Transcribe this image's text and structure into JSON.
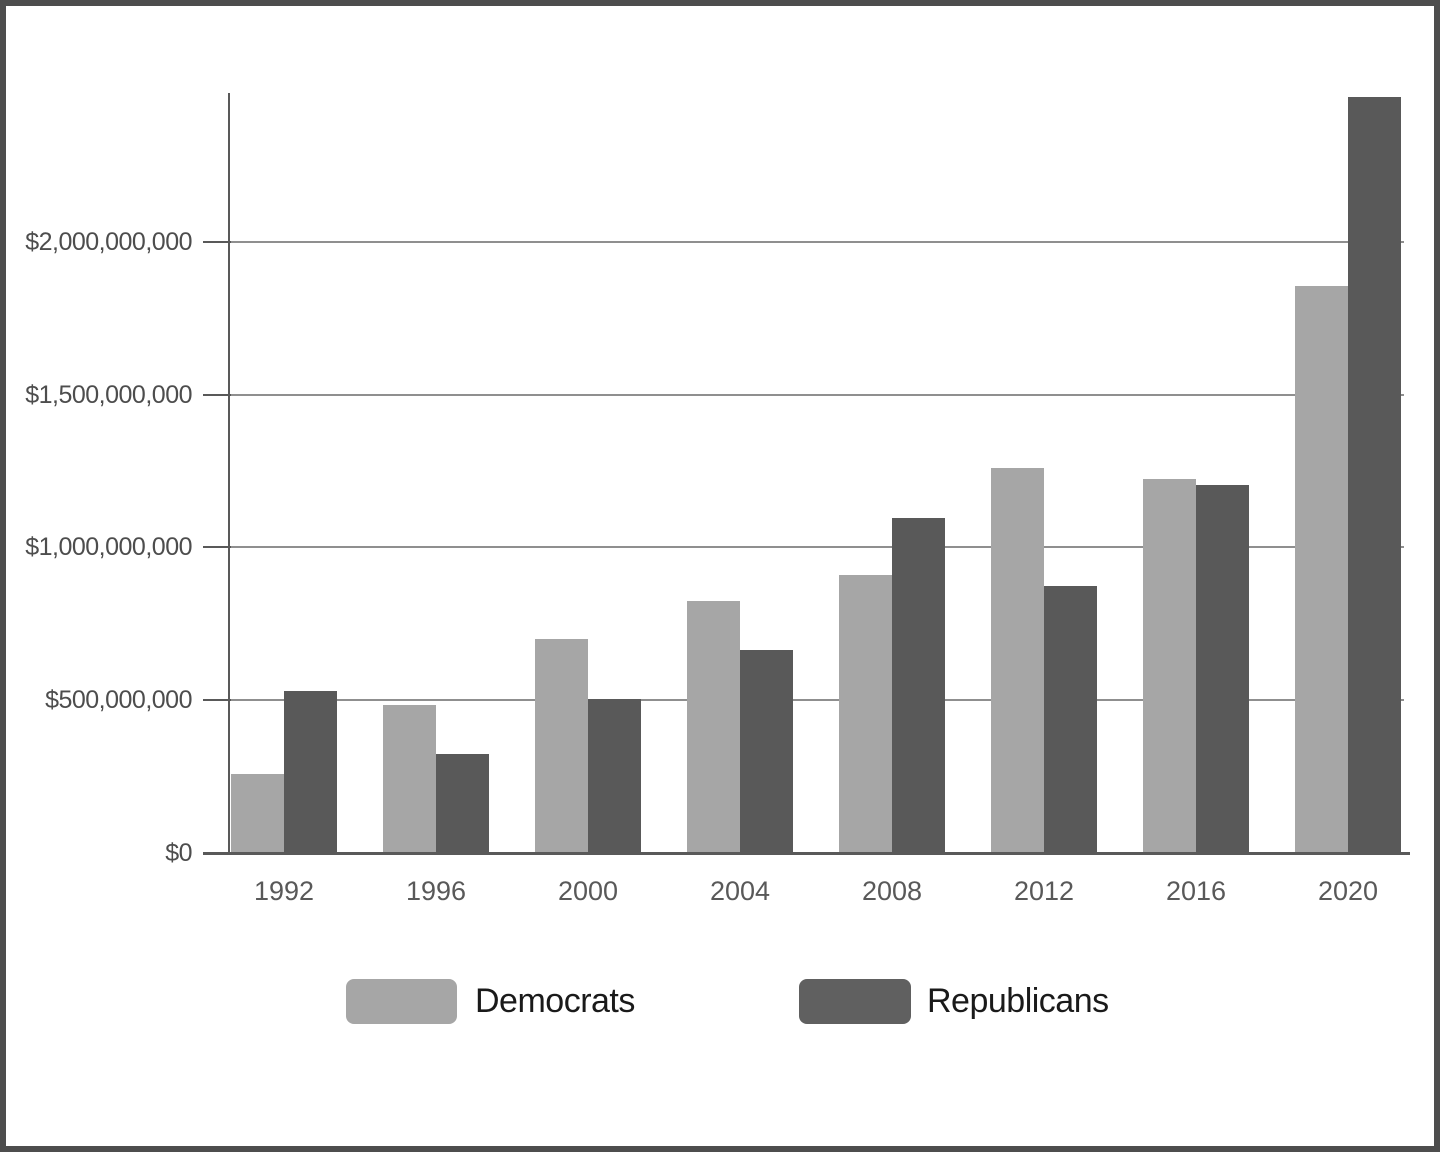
{
  "chart_data": {
    "type": "bar",
    "title": "",
    "categories": [
      "1992",
      "1996",
      "2000",
      "2004",
      "2008",
      "2012",
      "2016",
      "2020"
    ],
    "series": [
      {
        "name": "Democrats",
        "color": "#a6a6a6",
        "values": [
          260000000,
          485000000,
          700000000,
          825000000,
          910000000,
          1260000000,
          1225000000,
          1855000000
        ]
      },
      {
        "name": "Republicans",
        "color": "#595959",
        "values": [
          530000000,
          325000000,
          505000000,
          665000000,
          1095000000,
          875000000,
          1205000000,
          2475000000
        ]
      }
    ],
    "xlabel": "",
    "ylabel": "",
    "ylim": [
      0,
      2487000000
    ],
    "yticks": [
      {
        "value": 2000000000,
        "label": "$2,000,000,000"
      },
      {
        "value": 1500000000,
        "label": "$1,500,000,000"
      },
      {
        "value": 1000000000,
        "label": "$1,000,000,000"
      },
      {
        "value": 500000000,
        "label": "$500,000,000"
      },
      {
        "value": 0,
        "label": "$0"
      }
    ],
    "grid": true,
    "legend_position": "bottom"
  },
  "legend": {
    "items": [
      {
        "label": "Democrats",
        "color": "#a6a6a6"
      },
      {
        "label": "Republicans",
        "color": "#606060"
      }
    ]
  },
  "colors": {
    "frame_border": "#4d4d4d",
    "gridline": "#8f8f8f",
    "axis": "#595959",
    "axis_label": "#4d4d4d",
    "background": "#ffffff"
  }
}
